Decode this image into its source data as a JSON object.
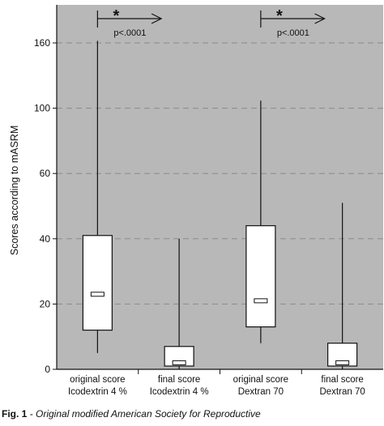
{
  "chart_data": {
    "type": "boxplot",
    "ylabel": "Scores according to mASRM",
    "y_ticks": [
      0,
      20,
      40,
      60,
      100,
      160
    ],
    "grid": "horizontal dashed",
    "categories": [
      [
        "original score",
        "Icodextrin 4 %"
      ],
      [
        "final score",
        "Icodextrin 4 %"
      ],
      [
        "original score",
        "Dextran 70"
      ],
      [
        "final score",
        "Dextran 70"
      ]
    ],
    "boxes": [
      {
        "min": 5,
        "q1": 12,
        "median": 23,
        "q3": 41,
        "max": 162
      },
      {
        "min": 0,
        "q1": 1,
        "median": 2,
        "q3": 7,
        "max": 40
      },
      {
        "min": 8,
        "q1": 13,
        "median": 21,
        "q3": 44,
        "max": 107
      },
      {
        "min": 0,
        "q1": 1,
        "median": 2,
        "q3": 8,
        "max": 51
      }
    ],
    "annotations": [
      {
        "from": 0,
        "to": 1,
        "symbol": "*",
        "text": "p<.0001"
      },
      {
        "from": 2,
        "to": 3,
        "symbol": "*",
        "text": "p<.0001"
      }
    ],
    "colors": {
      "plot_background": "#b8b8b8",
      "box_fill": "#ffffff",
      "line": "#111111",
      "grid": "#8a8a8a"
    }
  },
  "caption": {
    "label": "Fig. 1",
    "text": " - Original modified American Society for Reproductive"
  }
}
